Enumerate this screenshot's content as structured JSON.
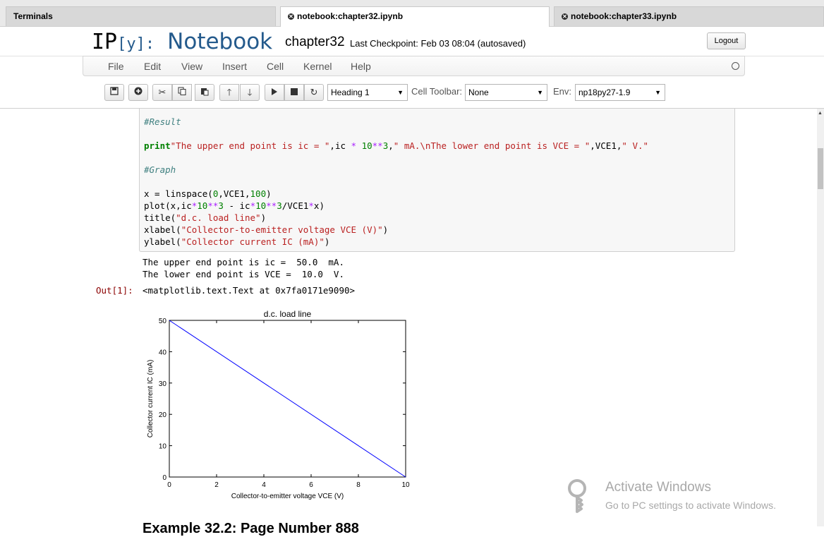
{
  "tabs": [
    {
      "label": "Terminals",
      "active": false,
      "closable": false
    },
    {
      "label": "notebook:chapter32.ipynb",
      "active": true,
      "closable": true
    },
    {
      "label": "notebook:chapter33.ipynb",
      "active": false,
      "closable": true
    }
  ],
  "header": {
    "logo_ip": "IP",
    "logo_y": "[y]:",
    "logo_notebook": "Notebook",
    "notebook_name": "chapter32",
    "checkpoint": "Last Checkpoint: Feb 03 08:04 (autosaved)",
    "logout_label": "Logout"
  },
  "menu": [
    "File",
    "Edit",
    "View",
    "Insert",
    "Cell",
    "Kernel",
    "Help"
  ],
  "toolbar": {
    "icons": [
      "save-icon",
      "plus-icon",
      "cut-icon",
      "copy-icon",
      "paste-icon",
      "arrow-up-icon",
      "arrow-down-icon",
      "play-icon",
      "stop-icon",
      "restart-icon"
    ],
    "cell_type": "Heading 1",
    "cell_toolbar_label": "Cell Toolbar:",
    "cell_toolbar_value": "None",
    "env_label": "Env:",
    "env_value": "np18py27-1.9"
  },
  "code": {
    "comment_result": "#Result",
    "print_kw": "print",
    "print_rest_a": " \"The upper end point is ic = \",ic ",
    "print_rest_b": " 10",
    "print_rest_c": "3,\" mA.\\nThe lower end point is VCE = \",VCE1,\" V.\"",
    "comment_graph": "#Graph",
    "line_linspace": "x = linspace(0,VCE1,100)",
    "line_plot": "plot(x,ic*10**3 - ic*10**3/VCE1*x)",
    "line_title": "title(\"d.c. load line\")",
    "line_xlabel": "xlabel(\"Collector-to-emitter voltage VCE (V)\")",
    "line_ylabel": "ylabel(\"Collector current IC (mA)\")"
  },
  "output": {
    "stdout_line1": "The upper end point is ic =  50.0  mA.",
    "stdout_line2": "The lower end point is VCE =  10.0  V.",
    "out_prompt": "Out[1]:",
    "out_value": "<matplotlib.text.Text at 0x7fa0171e9090>",
    "next_heading": "Example 32.2: Page Number 888"
  },
  "chart_data": {
    "type": "line",
    "title": "d.c. load line",
    "xlabel": "Collector-to-emitter voltage VCE (V)",
    "ylabel": "Collector current IC (mA)",
    "xlim": [
      0,
      10
    ],
    "ylim": [
      0,
      50
    ],
    "xticks": [
      0,
      2,
      4,
      6,
      8,
      10
    ],
    "yticks": [
      0,
      10,
      20,
      30,
      40,
      50
    ],
    "series": [
      {
        "x": [
          0,
          10
        ],
        "y": [
          50,
          0
        ],
        "color": "#0000ff"
      }
    ]
  },
  "watermark": {
    "title": "Activate Windows",
    "subtitle": "Go to PC settings to activate Windows."
  }
}
